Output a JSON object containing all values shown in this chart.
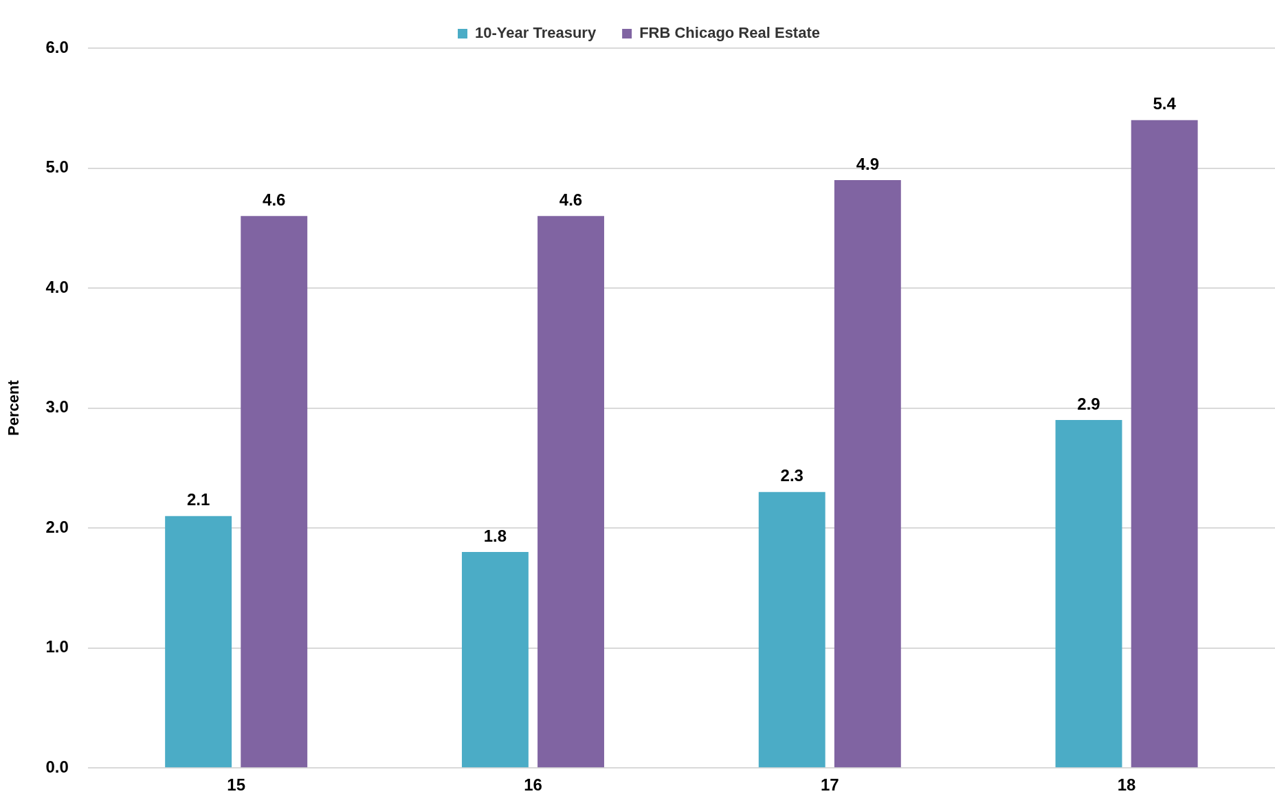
{
  "chart_data": {
    "type": "bar",
    "ylabel": "Percent",
    "categories": [
      "15",
      "16",
      "17",
      "18"
    ],
    "series": [
      {
        "name": "10-Year Treasury",
        "color": "#4bacc6",
        "values": [
          2.1,
          1.8,
          2.3,
          2.9
        ]
      },
      {
        "name": "FRB Chicago Real Estate",
        "color": "#8064a2",
        "values": [
          4.6,
          4.6,
          4.9,
          5.4
        ]
      }
    ],
    "ylim": [
      0,
      6
    ],
    "yticks": [
      {
        "value": 0,
        "label": "0.0"
      },
      {
        "value": 1,
        "label": "1.0"
      },
      {
        "value": 2,
        "label": "2.0"
      },
      {
        "value": 3,
        "label": "3.0"
      },
      {
        "value": 4,
        "label": "4.0"
      },
      {
        "value": 5,
        "label": "5.0"
      },
      {
        "value": 6,
        "label": "6.0"
      }
    ],
    "grid": "y",
    "legend": "top",
    "data_labels": true
  }
}
